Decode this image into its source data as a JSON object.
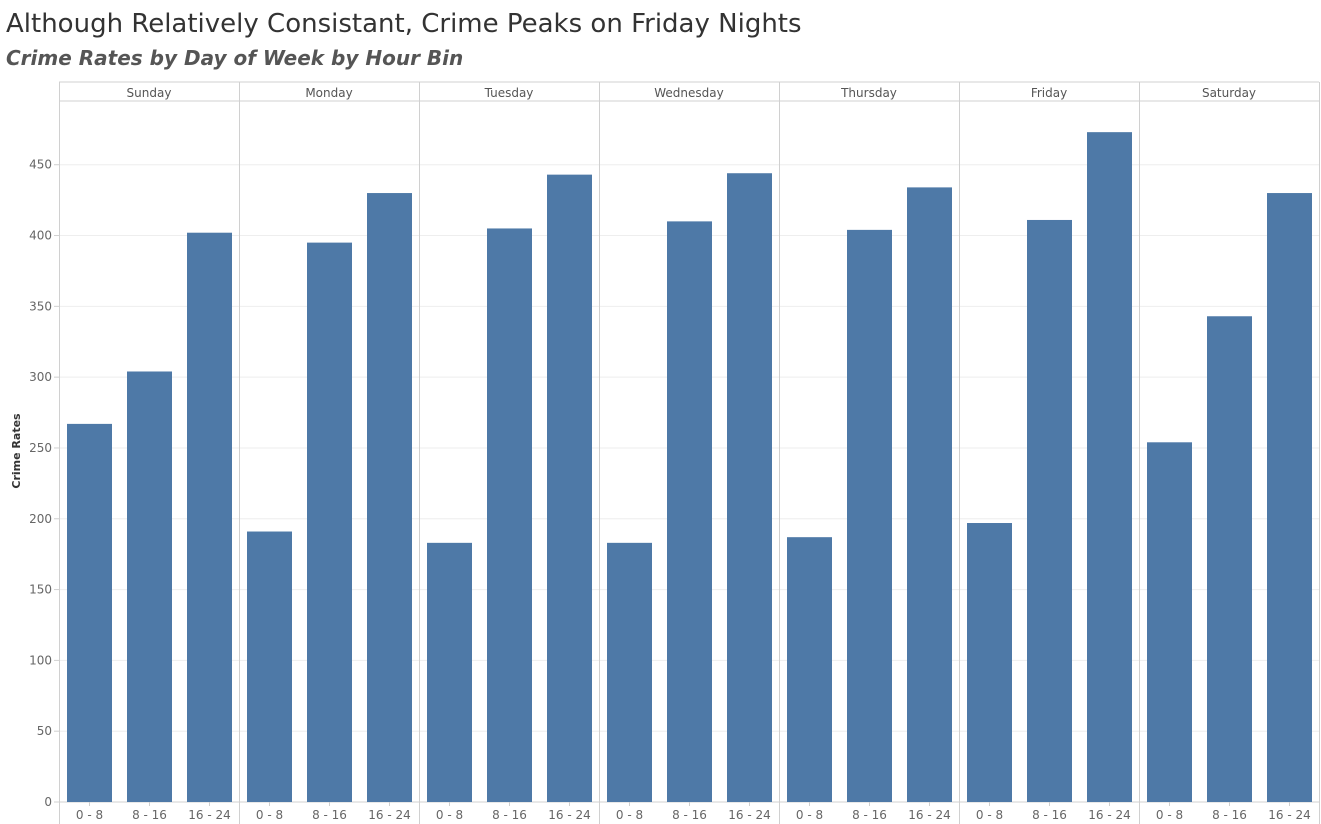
{
  "header": {
    "title": "Although Relatively Consistant, Crime Peaks on Friday Nights",
    "subtitle": "Crime Rates by Day of Week by Hour Bin"
  },
  "colors": {
    "bar": "#4e79a7",
    "grid": "#eeeeee",
    "divider": "#d0d0d0"
  },
  "chart_data": {
    "type": "bar",
    "title": "Although Relatively Consistant, Crime Peaks on Friday Nights",
    "subtitle": "Crime Rates by Day of Week by Hour Bin",
    "ylabel": "Crime Rates",
    "xlabel": "",
    "ylim": [
      0,
      495
    ],
    "yticks": [
      0,
      50,
      100,
      150,
      200,
      250,
      300,
      350,
      400,
      450
    ],
    "grid": true,
    "panels": [
      "Sunday",
      "Monday",
      "Tuesday",
      "Wednesday",
      "Thursday",
      "Friday",
      "Saturday"
    ],
    "categories": [
      "0 - 8",
      "8 - 16",
      "16 - 24"
    ],
    "series": [
      {
        "panel": "Sunday",
        "values": [
          267,
          304,
          402
        ]
      },
      {
        "panel": "Monday",
        "values": [
          191,
          395,
          430
        ]
      },
      {
        "panel": "Tuesday",
        "values": [
          183,
          405,
          443
        ]
      },
      {
        "panel": "Wednesday",
        "values": [
          183,
          410,
          444
        ]
      },
      {
        "panel": "Thursday",
        "values": [
          187,
          404,
          434
        ]
      },
      {
        "panel": "Friday",
        "values": [
          197,
          411,
          473
        ]
      },
      {
        "panel": "Saturday",
        "values": [
          254,
          343,
          430
        ]
      }
    ]
  }
}
